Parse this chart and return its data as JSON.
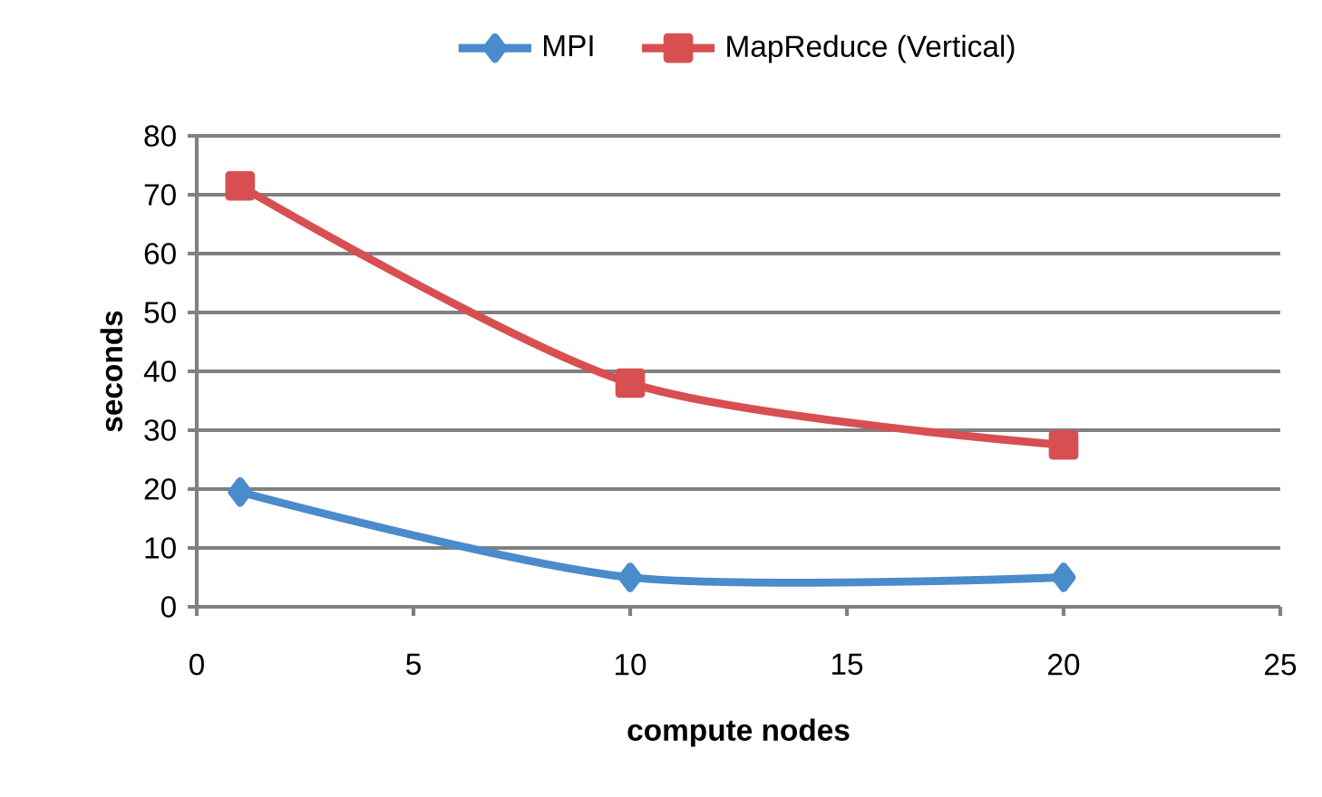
{
  "chart_data": {
    "type": "line",
    "xlabel": "compute nodes",
    "ylabel": "seconds",
    "x": [
      1,
      10,
      20
    ],
    "series": [
      {
        "name": "MPI",
        "color": "#4a8bcb",
        "values": [
          19.5,
          5,
          5
        ],
        "marker": "diamond"
      },
      {
        "name": "MapReduce (Vertical)",
        "color": "#d84f52",
        "values": [
          71.5,
          38,
          27.5
        ],
        "marker": "square"
      }
    ],
    "xlim": [
      0,
      25
    ],
    "ylim": [
      0,
      80
    ],
    "xticks": [
      0,
      5,
      10,
      15,
      20,
      25
    ],
    "yticks": [
      0,
      10,
      20,
      30,
      40,
      50,
      60,
      70,
      80
    ],
    "grid": "y",
    "legend": "top",
    "line_style": "solid"
  }
}
